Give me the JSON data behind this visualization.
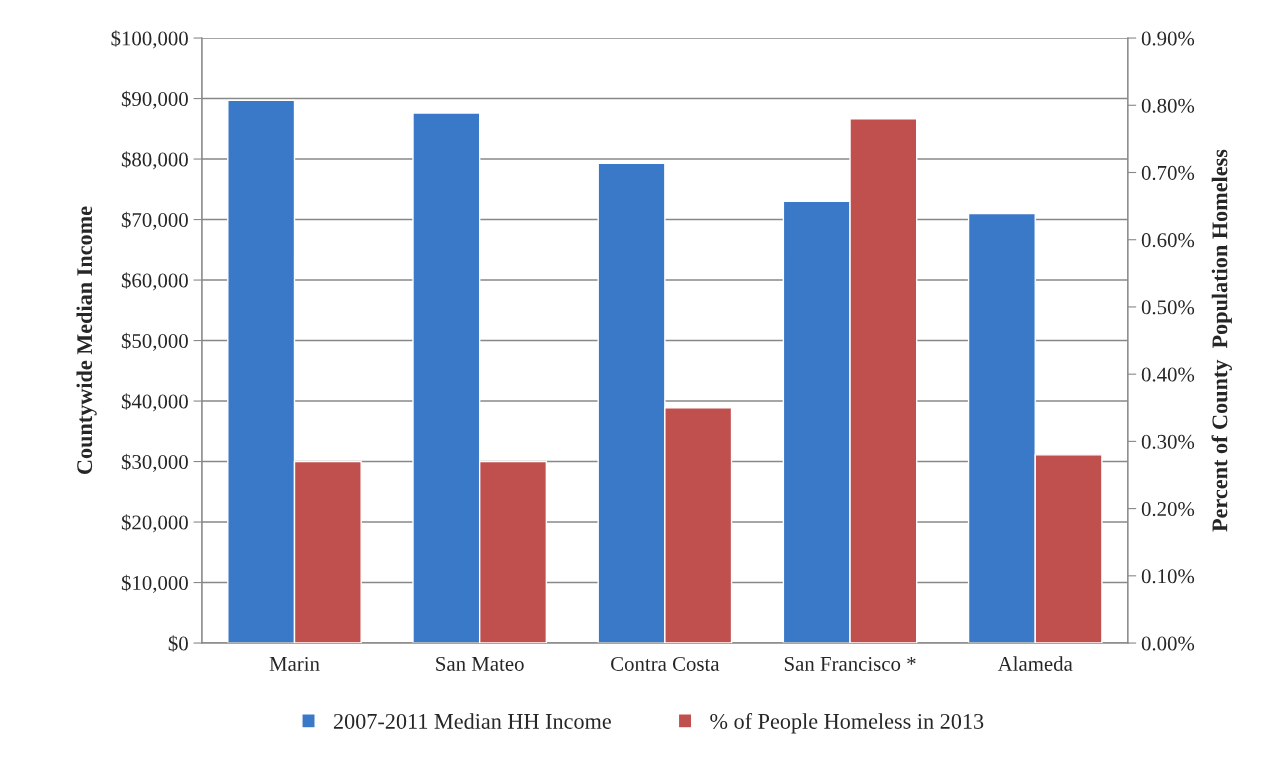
{
  "chart_data": {
    "type": "bar",
    "categories": [
      "Marin",
      "San Mateo",
      "Contra Costa",
      "San Francisco *",
      "Alameda"
    ],
    "ylabel": "Countywide Median Income",
    "y2label": "Percent of County  Population Homeless",
    "series": [
      {
        "name": "2007-2011 Median HH Income",
        "color": "#3a78c8",
        "values": [
          89700,
          87600,
          79300,
          73000,
          71000
        ]
      },
      {
        "name": "% of People Homeless in 2013",
        "color": "#c0504d",
        "axis": "y2",
        "values": [
          0.27,
          0.27,
          0.35,
          0.78,
          0.28
        ]
      }
    ],
    "ylim": [
      0,
      100000
    ],
    "yticks": [
      {
        "value": 0,
        "label": "$0"
      },
      {
        "value": 10000,
        "label": "$10,000"
      },
      {
        "value": 20000,
        "label": "$20,000"
      },
      {
        "value": 30000,
        "label": "$30,000"
      },
      {
        "value": 40000,
        "label": "$40,000"
      },
      {
        "value": 50000,
        "label": "$50,000"
      },
      {
        "value": 60000,
        "label": "$60,000"
      },
      {
        "value": 70000,
        "label": "$70,000"
      },
      {
        "value": 80000,
        "label": "$80,000"
      },
      {
        "value": 90000,
        "label": "$90,000"
      },
      {
        "value": 100000,
        "label": "$100,000"
      }
    ],
    "y2lim": [
      0,
      0.9
    ],
    "y2ticks": [
      {
        "value": 0,
        "label": "0.00%"
      },
      {
        "value": 0.1,
        "label": "0.10%"
      },
      {
        "value": 0.2,
        "label": "0.20%"
      },
      {
        "value": 0.3,
        "label": "0.30%"
      },
      {
        "value": 0.4,
        "label": "0.40%"
      },
      {
        "value": 0.5,
        "label": "0.50%"
      },
      {
        "value": 0.6,
        "label": "0.60%"
      },
      {
        "value": 0.7,
        "label": "0.70%"
      },
      {
        "value": 0.8,
        "label": "0.80%"
      },
      {
        "value": 0.9,
        "label": "0.90%"
      }
    ],
    "grid": "y",
    "legend": "bottom"
  }
}
